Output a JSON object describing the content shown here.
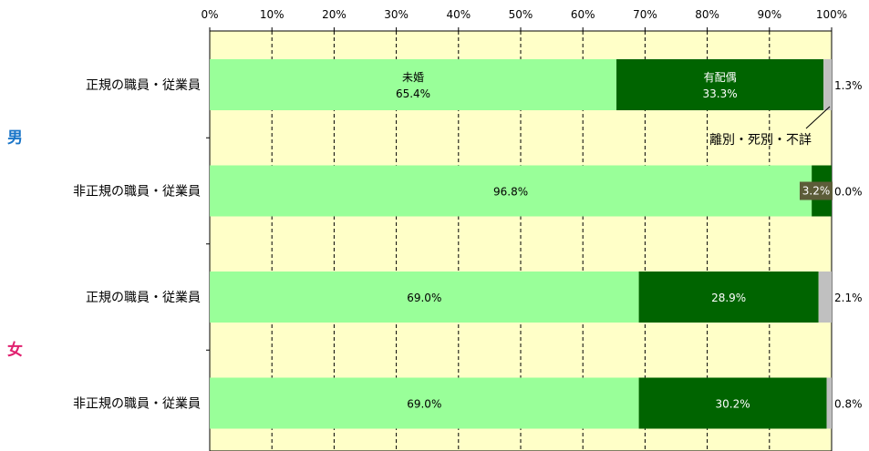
{
  "chart_data": {
    "type": "bar",
    "orientation": "horizontal-stacked",
    "x_ticks": [
      "0%",
      "10%",
      "20%",
      "30%",
      "40%",
      "50%",
      "60%",
      "70%",
      "80%",
      "90%",
      "100%"
    ],
    "xlim": [
      0,
      100
    ],
    "grid": true,
    "colors": {
      "plot_bg": "#ffffc8",
      "series": [
        "#99ff99",
        "#006400",
        "#c0c0c0"
      ]
    },
    "segment_names": [
      "未婚",
      "有配偶",
      "離別・死別・不詳"
    ],
    "groups": [
      {
        "label": "男",
        "rows": [
          {
            "category": "正規の職員・従業員",
            "values": [
              65.4,
              33.3,
              1.3
            ],
            "labels": [
              "65.4%",
              "33.3%",
              "1.3%"
            ]
          },
          {
            "category": "非正規の職員・従業員",
            "values": [
              96.8,
              3.2,
              0.0
            ],
            "labels": [
              "96.8%",
              "3.2%",
              "0.0%"
            ]
          }
        ]
      },
      {
        "label": "女",
        "rows": [
          {
            "category": "正規の職員・従業員",
            "values": [
              69.0,
              28.9,
              2.1
            ],
            "labels": [
              "69.0%",
              "28.9%",
              "2.1%"
            ]
          },
          {
            "category": "非正規の職員・従業員",
            "values": [
              69.0,
              30.2,
              0.8
            ],
            "labels": [
              "69.0%",
              "30.2%",
              "0.8%"
            ]
          }
        ]
      }
    ],
    "annotations": {
      "first_bar_series_names": [
        "未婚",
        "有配偶"
      ],
      "callout": "離別・死別・不詳"
    }
  }
}
